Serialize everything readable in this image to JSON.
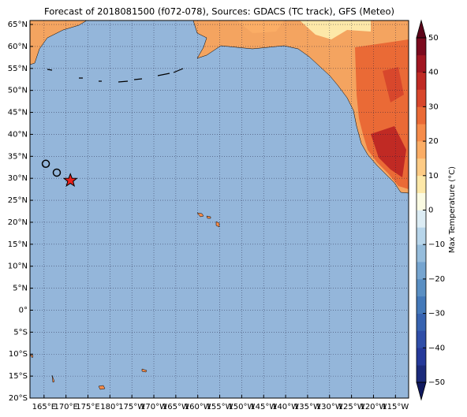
{
  "chart_data": {
    "type": "map",
    "title": "Forecast of 2018081500 (f072-078), Sources: GDACS (TC track), GFS (Meteo)",
    "ocean_color": "#94b6da",
    "xlim": [
      161.8,
      -112
    ],
    "ylim": [
      -20,
      65.9
    ],
    "xticks": [
      {
        "value": 165,
        "label": "165°E"
      },
      {
        "value": 170,
        "label": "170°E"
      },
      {
        "value": 175,
        "label": "175°E"
      },
      {
        "value": 180,
        "label": "180°"
      },
      {
        "value": -175,
        "label": "175°W"
      },
      {
        "value": -170,
        "label": "170°W"
      },
      {
        "value": -165,
        "label": "165°W"
      },
      {
        "value": -160,
        "label": "160°W"
      },
      {
        "value": -155,
        "label": "155°W"
      },
      {
        "value": -150,
        "label": "150°W"
      },
      {
        "value": -145,
        "label": "145°W"
      },
      {
        "value": -140,
        "label": "140°W"
      },
      {
        "value": -135,
        "label": "135°W"
      },
      {
        "value": -130,
        "label": "130°W"
      },
      {
        "value": -125,
        "label": "125°W"
      },
      {
        "value": -120,
        "label": "120°W"
      },
      {
        "value": -115,
        "label": "115°W"
      }
    ],
    "yticks": [
      {
        "value": 65,
        "label": "65°N"
      },
      {
        "value": 60,
        "label": "60°N"
      },
      {
        "value": 55,
        "label": "55°N"
      },
      {
        "value": 50,
        "label": "50°N"
      },
      {
        "value": 45,
        "label": "45°N"
      },
      {
        "value": 40,
        "label": "40°N"
      },
      {
        "value": 35,
        "label": "35°N"
      },
      {
        "value": 30,
        "label": "30°N"
      },
      {
        "value": 25,
        "label": "25°N"
      },
      {
        "value": 20,
        "label": "20°N"
      },
      {
        "value": 15,
        "label": "15°N"
      },
      {
        "value": 10,
        "label": "10°N"
      },
      {
        "value": 5,
        "label": "5°N"
      },
      {
        "value": 0,
        "label": "0°"
      },
      {
        "value": -5,
        "label": "5°S"
      },
      {
        "value": -10,
        "label": "10°S"
      },
      {
        "value": -15,
        "label": "15°S"
      },
      {
        "value": -20,
        "label": "20°S"
      }
    ],
    "grid": true,
    "track": {
      "lon": [
        165.4,
        167.9,
        171
      ],
      "lat": [
        33.3,
        31.3,
        29.5
      ],
      "marker": [
        "circle",
        "circle",
        "star"
      ],
      "current_color": "#e8211c"
    },
    "colorbar": {
      "label": "Max Temperature (°C)",
      "lim": [
        -50,
        50
      ],
      "step": 5,
      "extend": "both",
      "colors": [
        "#1b2a7b",
        "#25399a",
        "#2f4ea8",
        "#3763b0",
        "#4479b9",
        "#5a8fc3",
        "#76a5d0",
        "#96bddc",
        "#b7d5ea",
        "#dcecf4",
        "#fbfbe2",
        "#fde8a8",
        "#fdcb85",
        "#fbad65",
        "#f68c4b",
        "#ea6a36",
        "#d8472c",
        "#c02a24",
        "#a11621",
        "#7c0a1e"
      ],
      "extend_colors": [
        "#10195e",
        "#5c0419"
      ],
      "ticks": [
        {
          "value": 50,
          "label": "50"
        },
        {
          "value": 40,
          "label": "40"
        },
        {
          "value": 30,
          "label": "30"
        },
        {
          "value": 20,
          "label": "20"
        },
        {
          "value": 10,
          "label": "10"
        },
        {
          "value": 0,
          "label": "0"
        },
        {
          "value": -10,
          "label": "−10"
        },
        {
          "value": -20,
          "label": "−20"
        },
        {
          "value": -30,
          "label": "−30"
        },
        {
          "value": -40,
          "label": "−40"
        },
        {
          "value": -50,
          "label": "−50"
        }
      ]
    }
  }
}
